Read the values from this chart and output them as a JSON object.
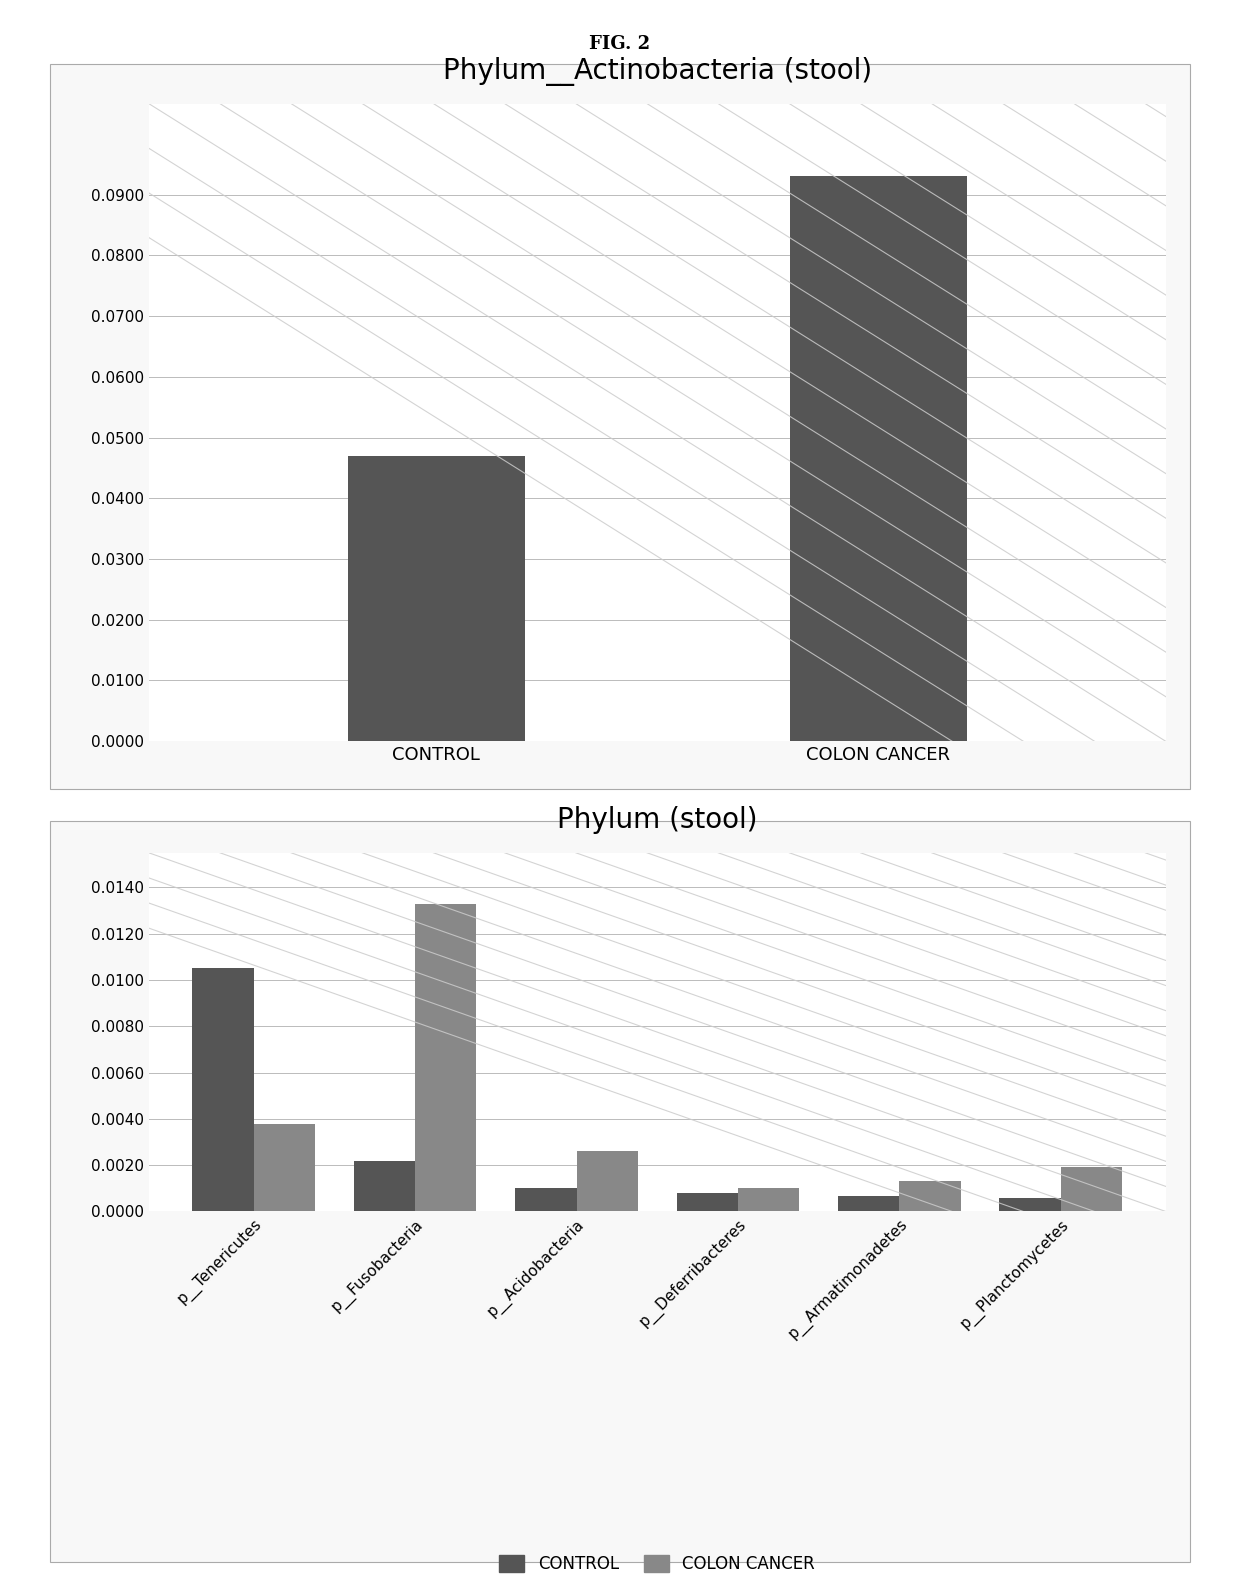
{
  "fig_title": "FIG. 2",
  "chart1": {
    "title": "Phylum__Actinobacteria (stool)",
    "categories": [
      "CONTROL",
      "COLON CANCER"
    ],
    "values": [
      0.047,
      0.093
    ],
    "bar_color": "#555555",
    "ylim": [
      0,
      0.105
    ],
    "yticks": [
      0.0,
      0.01,
      0.02,
      0.03,
      0.04,
      0.05,
      0.06,
      0.07,
      0.08,
      0.09
    ],
    "ytick_labels": [
      "0.0000",
      "0.0100",
      "0.0200",
      "0.0300",
      "0.0400",
      "0.0500",
      "0.0600",
      "0.0700",
      "0.0800",
      "0.0900"
    ]
  },
  "chart2": {
    "title": "Phylum (stool)",
    "categories": [
      "p__Tenericutes",
      "p__Fusobacteria",
      "p__Acidobacteria",
      "p__Deferribacteres",
      "p__Armatimonadetes",
      "p__Planctomycetes"
    ],
    "control_values": [
      0.0105,
      0.0022,
      0.001,
      0.0008,
      0.00065,
      0.0006
    ],
    "cancer_values": [
      0.0038,
      0.0133,
      0.0026,
      0.001,
      0.0013,
      0.0019
    ],
    "control_color": "#555555",
    "cancer_color": "#888888",
    "ylim": [
      0,
      0.0155
    ],
    "yticks": [
      0.0,
      0.002,
      0.004,
      0.006,
      0.008,
      0.01,
      0.012,
      0.014
    ],
    "ytick_labels": [
      "0.0000",
      "0.0020",
      "0.0040",
      "0.0060",
      "0.0080",
      "0.0100",
      "0.0120",
      "0.0140"
    ],
    "legend_control": "CONTROL",
    "legend_cancer": "COLON CANCER"
  },
  "background_color": "#ffffff",
  "panel_bg": "#ffffff",
  "grid_color": "#bbbbbb",
  "diag_color": "#cccccc",
  "border_color": "#999999"
}
